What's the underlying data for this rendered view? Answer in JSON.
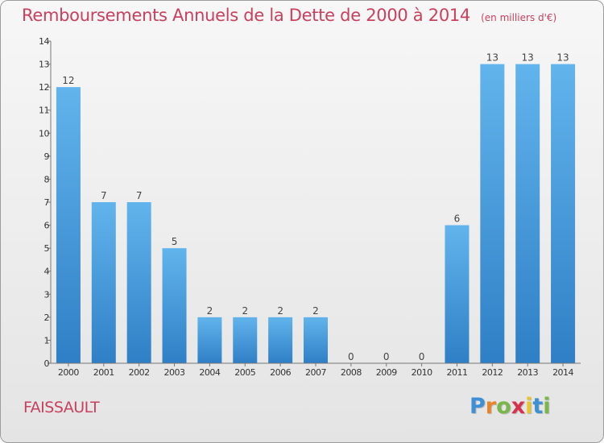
{
  "chart_data": {
    "type": "bar",
    "title": "Remboursements Annuels de la Dette de 2000 à 2014",
    "subtitle": "(en milliers d'€)",
    "categories": [
      "2000",
      "2001",
      "2002",
      "2003",
      "2004",
      "2005",
      "2006",
      "2007",
      "2008",
      "2009",
      "2010",
      "2011",
      "2012",
      "2013",
      "2014"
    ],
    "values": [
      12,
      7,
      7,
      5,
      2,
      2,
      2,
      2,
      0,
      0,
      0,
      6,
      13,
      13,
      13
    ],
    "ylim": [
      0,
      14
    ],
    "yticks": [
      0,
      1,
      2,
      3,
      4,
      5,
      6,
      7,
      8,
      9,
      10,
      11,
      12,
      13,
      14
    ],
    "grid": false,
    "bar_color": "#4a9fe0",
    "xlabel": "",
    "ylabel": ""
  },
  "commune": "FAISSAULT",
  "logo": {
    "letters": [
      "P",
      "r",
      "o",
      "x",
      "i",
      "t",
      "i"
    ],
    "colors": [
      "#3d8fd6",
      "#e8852a",
      "#7ab648",
      "#d6324f",
      "#e8c52a",
      "#3d8fd6",
      "#7ab648"
    ]
  },
  "colors": {
    "title": "#c9405e",
    "accent": "#c9405e"
  }
}
